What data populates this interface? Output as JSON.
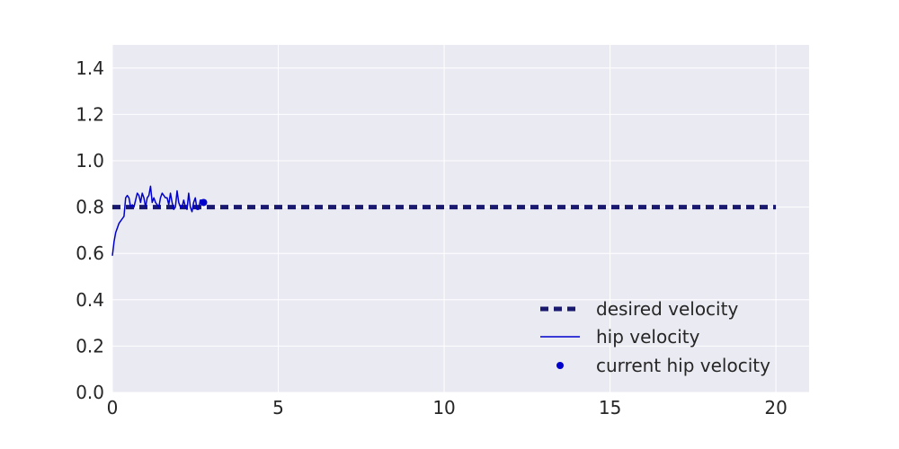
{
  "chart_data": {
    "type": "line",
    "title": "",
    "xlabel": "",
    "ylabel": "",
    "xlim": [
      0,
      21
    ],
    "ylim": [
      0,
      1.5
    ],
    "xticks": [
      0,
      5,
      10,
      15,
      20
    ],
    "yticks": [
      0.0,
      0.2,
      0.4,
      0.6,
      0.8,
      1.0,
      1.2,
      1.4
    ],
    "xtick_labels": [
      "0",
      "5",
      "10",
      "15",
      "20"
    ],
    "ytick_labels": [
      "0.0",
      "0.2",
      "0.4",
      "0.6",
      "0.8",
      "1.0",
      "1.2",
      "1.4"
    ],
    "grid": true,
    "background": "#eaeaf2",
    "legend_position": "lower-right",
    "series": [
      {
        "name": "desired velocity",
        "style": "dashed",
        "color": "#191970",
        "x": [
          0,
          20
        ],
        "y": [
          0.8,
          0.8
        ]
      },
      {
        "name": "hip velocity",
        "style": "solid",
        "color": "#0000cd",
        "x": [
          0.0,
          0.05,
          0.1,
          0.15,
          0.2,
          0.25,
          0.3,
          0.35,
          0.4,
          0.45,
          0.5,
          0.55,
          0.6,
          0.65,
          0.7,
          0.75,
          0.8,
          0.85,
          0.9,
          0.95,
          1.0,
          1.05,
          1.1,
          1.15,
          1.2,
          1.25,
          1.3,
          1.35,
          1.4,
          1.45,
          1.5,
          1.55,
          1.6,
          1.65,
          1.7,
          1.75,
          1.8,
          1.85,
          1.9,
          1.95,
          2.0,
          2.05,
          2.1,
          2.15,
          2.2,
          2.25,
          2.3,
          2.35,
          2.4,
          2.45,
          2.5,
          2.55,
          2.6,
          2.65,
          2.7,
          2.75
        ],
        "y": [
          0.59,
          0.65,
          0.69,
          0.71,
          0.73,
          0.74,
          0.75,
          0.76,
          0.84,
          0.85,
          0.84,
          0.8,
          0.81,
          0.8,
          0.83,
          0.86,
          0.85,
          0.82,
          0.86,
          0.84,
          0.8,
          0.84,
          0.85,
          0.89,
          0.82,
          0.84,
          0.82,
          0.81,
          0.8,
          0.84,
          0.86,
          0.85,
          0.84,
          0.84,
          0.81,
          0.86,
          0.82,
          0.79,
          0.8,
          0.87,
          0.82,
          0.8,
          0.8,
          0.83,
          0.8,
          0.79,
          0.86,
          0.8,
          0.78,
          0.82,
          0.84,
          0.79,
          0.79,
          0.83,
          0.83,
          0.82
        ]
      },
      {
        "name": "current hip velocity",
        "style": "marker",
        "color": "#0000cd",
        "x": [
          2.75
        ],
        "y": [
          0.82
        ]
      }
    ]
  }
}
